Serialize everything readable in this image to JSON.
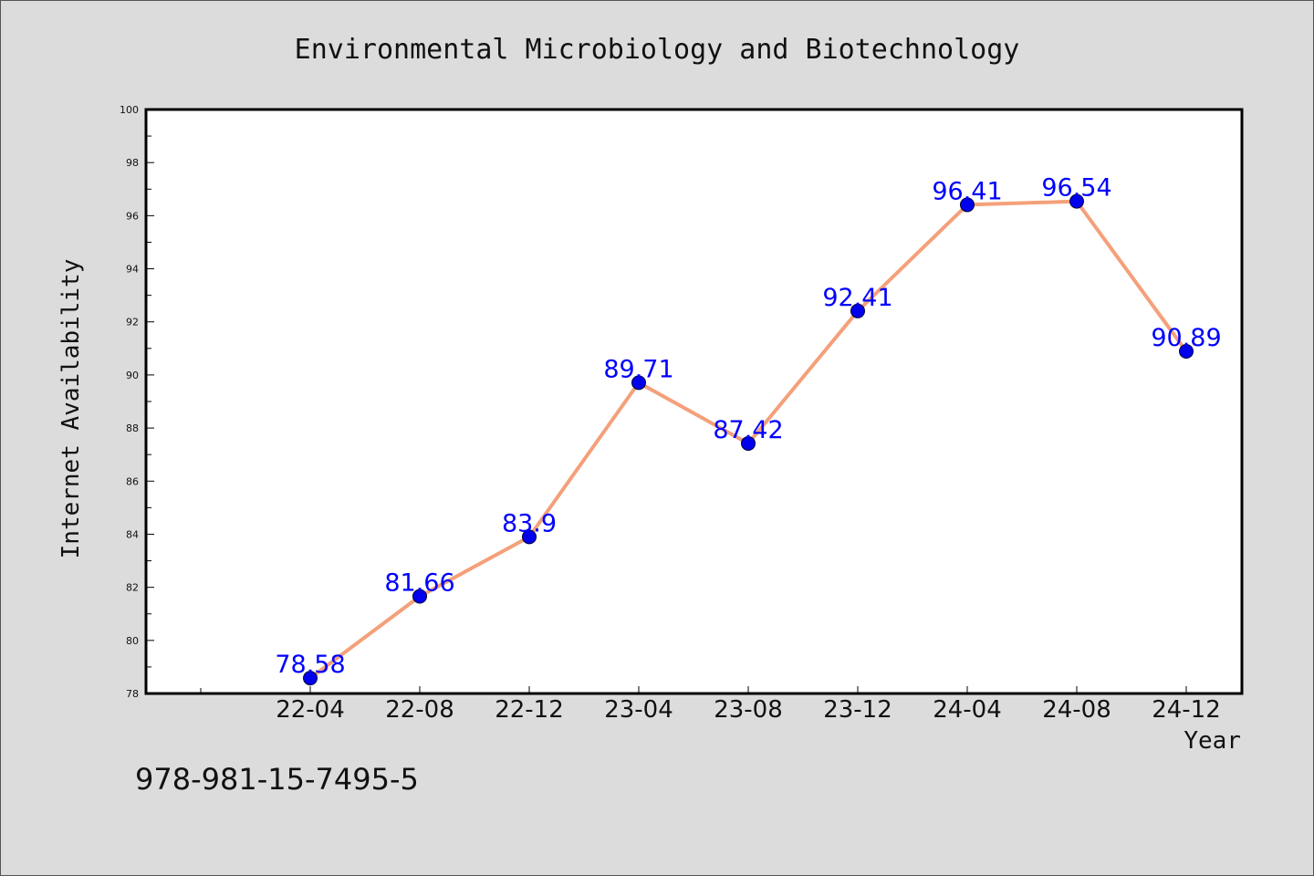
{
  "chart_data": {
    "type": "line",
    "title": "Environmental Microbiology and Biotechnology",
    "xlabel": "Year",
    "ylabel": "Internet Availability",
    "categories": [
      "22-04",
      "22-08",
      "22-12",
      "23-04",
      "23-08",
      "23-12",
      "24-04",
      "24-08",
      "24-12"
    ],
    "series": [
      {
        "values": [
          78.58,
          81.66,
          83.9,
          89.71,
          87.42,
          92.41,
          96.41,
          96.54,
          90.89
        ],
        "labels": [
          "78.58",
          "81.66",
          "83.9",
          "89.71",
          "87.42",
          "92.41",
          "96.41",
          "96.54",
          "90.89"
        ]
      }
    ],
    "ylim": [
      78,
      100
    ],
    "yticks": [
      "78",
      "80",
      "82",
      "84",
      "86",
      "88",
      "90",
      "92",
      "94",
      "96",
      "98",
      "100"
    ],
    "grid": false,
    "legend": "none",
    "colors": {
      "line": "#f4a07a",
      "marker": "#0000ee",
      "data_label": "#0000ff"
    }
  },
  "footer": {
    "isbn": "978-981-15-7495-5"
  }
}
